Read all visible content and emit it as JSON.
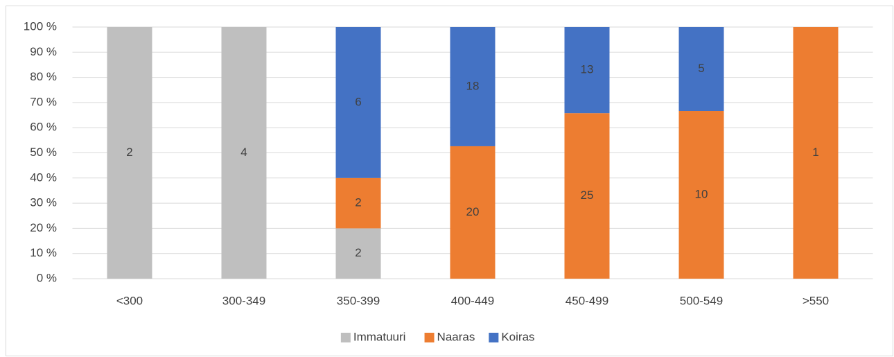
{
  "chart_data": {
    "type": "bar",
    "stack": "percent",
    "categories": [
      "<300",
      "300-349",
      "350-399",
      "400-449",
      "450-499",
      "500-549",
      ">550"
    ],
    "series": [
      {
        "name": "Immatuuri",
        "color": "#bfbfbf",
        "values": [
          2,
          4,
          2,
          null,
          null,
          null,
          null
        ]
      },
      {
        "name": "Naaras",
        "color": "#ed7d31",
        "values": [
          null,
          null,
          2,
          20,
          25,
          10,
          1
        ]
      },
      {
        "name": "Koiras",
        "color": "#4472c4",
        "values": [
          null,
          null,
          6,
          18,
          13,
          5,
          null
        ]
      }
    ],
    "ylim": [
      0,
      100
    ],
    "yticks": [
      {
        "value": 0,
        "label": "0 %"
      },
      {
        "value": 10,
        "label": "10 %"
      },
      {
        "value": 20,
        "label": "20 %"
      },
      {
        "value": 30,
        "label": "30 %"
      },
      {
        "value": 40,
        "label": "40 %"
      },
      {
        "value": 50,
        "label": "50 %"
      },
      {
        "value": 60,
        "label": "60 %"
      },
      {
        "value": 70,
        "label": "70 %"
      },
      {
        "value": 80,
        "label": "80 %"
      },
      {
        "value": 90,
        "label": "90 %"
      },
      {
        "value": 100,
        "label": "100 %"
      }
    ],
    "grid": true,
    "legend": "bottom"
  }
}
